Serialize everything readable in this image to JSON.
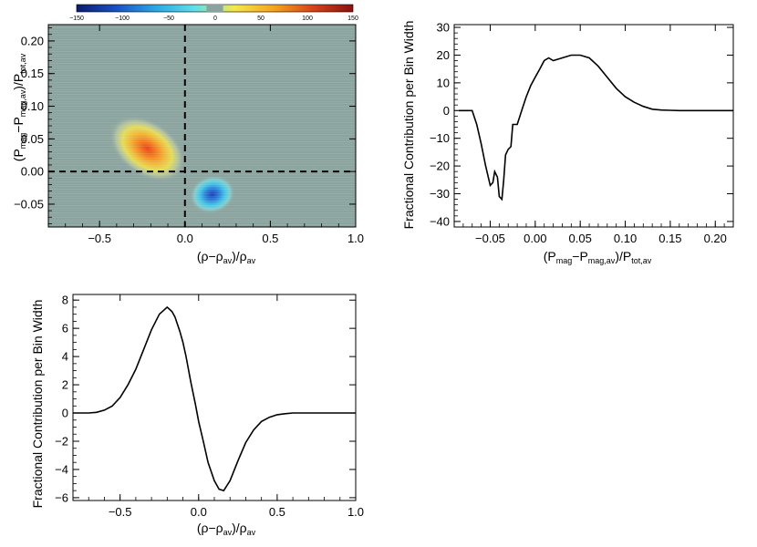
{
  "colorbar": {
    "ticks": [
      "−150",
      "−100",
      "−50",
      "0",
      "50",
      "100",
      "150"
    ],
    "range": [
      -150,
      150
    ],
    "colors": [
      "#0b1d6e",
      "#1a4fc4",
      "#2aa7e6",
      "#5fe0ea",
      "#f4e84a",
      "#f6a41c",
      "#d6421a",
      "#8a1010"
    ]
  },
  "chart_data": [
    {
      "type": "heatmap",
      "title": "",
      "xlabel": {
        "pre": "(ρ−ρ",
        "sub1": "av",
        "mid": ")/ρ",
        "sub2": "av"
      },
      "ylabel": {
        "p1": "(P",
        "s1": "mag",
        "p2": "−P",
        "s2": "mag,av",
        "p3": ")/P",
        "s3": "tot,av"
      },
      "xlim": [
        -0.8,
        1.0
      ],
      "ylim": [
        -0.085,
        0.225
      ],
      "xticks": [
        {
          "v": -0.5,
          "label": "−0.5"
        },
        {
          "v": 0.0,
          "label": "0.0"
        },
        {
          "v": 0.5,
          "label": "0.5"
        },
        {
          "v": 1.0,
          "label": "1.0"
        }
      ],
      "yticks": [
        {
          "v": -0.05,
          "label": "−0.05"
        },
        {
          "v": 0.0,
          "label": "0.00"
        },
        {
          "v": 0.05,
          "label": "0.05"
        },
        {
          "v": 0.1,
          "label": "0.10"
        },
        {
          "v": 0.15,
          "label": "0.15"
        },
        {
          "v": 0.2,
          "label": "0.20"
        }
      ],
      "reference_lines": {
        "x": 0.0,
        "y": 0.0,
        "style": "dashed"
      },
      "background": "#8aa39e",
      "blobs": [
        {
          "name": "positive-lobe",
          "cx": -0.22,
          "cy": 0.035,
          "rx": 0.26,
          "ry": 0.062,
          "angle": -55,
          "peak": 130
        },
        {
          "name": "negative-lobe",
          "cx": 0.16,
          "cy": -0.035,
          "rx": 0.22,
          "ry": 0.028,
          "angle": -15,
          "peak": -120
        }
      ]
    },
    {
      "type": "line",
      "title": "",
      "xlabel": {
        "p1": "(P",
        "s1": "mag",
        "p2": "−P",
        "s2": "mag,av",
        "p3": ")/P",
        "s3": "tot,av"
      },
      "ylabel": "Fractional Contribution per Bin Width",
      "xlim": [
        -0.09,
        0.22
      ],
      "ylim": [
        -42,
        31
      ],
      "xticks": [
        {
          "v": -0.05,
          "label": "−0.05"
        },
        {
          "v": 0.0,
          "label": "0.00"
        },
        {
          "v": 0.05,
          "label": "0.05"
        },
        {
          "v": 0.1,
          "label": "0.10"
        },
        {
          "v": 0.15,
          "label": "0.15"
        },
        {
          "v": 0.2,
          "label": "0.20"
        }
      ],
      "yticks": [
        {
          "v": -40,
          "label": "−40"
        },
        {
          "v": -30,
          "label": "−30"
        },
        {
          "v": -20,
          "label": "−20"
        },
        {
          "v": -10,
          "label": "−10"
        },
        {
          "v": 0,
          "label": "0"
        },
        {
          "v": 10,
          "label": "10"
        },
        {
          "v": 20,
          "label": "20"
        },
        {
          "v": 30,
          "label": "30"
        }
      ],
      "x": [
        -0.085,
        -0.07,
        -0.065,
        -0.06,
        -0.055,
        -0.05,
        -0.047,
        -0.045,
        -0.042,
        -0.04,
        -0.037,
        -0.035,
        -0.033,
        -0.03,
        -0.027,
        -0.025,
        -0.022,
        -0.02,
        -0.015,
        -0.01,
        -0.005,
        0.0,
        0.005,
        0.01,
        0.015,
        0.02,
        0.03,
        0.04,
        0.05,
        0.06,
        0.07,
        0.08,
        0.09,
        0.1,
        0.11,
        0.12,
        0.13,
        0.14,
        0.15,
        0.16,
        0.18,
        0.2,
        0.22
      ],
      "y": [
        0,
        0,
        -5,
        -12,
        -20,
        -27,
        -26,
        -22,
        -24,
        -31,
        -32,
        -25,
        -16,
        -14,
        -13,
        -5,
        -5,
        -5,
        0,
        5,
        9,
        12,
        15,
        18,
        19,
        18,
        19,
        20,
        20,
        19,
        16,
        12,
        8,
        5,
        3,
        1.5,
        0.5,
        0.2,
        0.1,
        0,
        0,
        0,
        0
      ]
    },
    {
      "type": "line",
      "title": "",
      "xlabel": {
        "pre": "(ρ−ρ",
        "sub1": "av",
        "mid": ")/ρ",
        "sub2": "av"
      },
      "ylabel": "Fractional Contribution per Bin Width",
      "xlim": [
        -0.8,
        1.0
      ],
      "ylim": [
        -6.2,
        8.4
      ],
      "xticks": [
        {
          "v": -0.5,
          "label": "−0.5"
        },
        {
          "v": 0.0,
          "label": "0.0"
        },
        {
          "v": 0.5,
          "label": "0.5"
        },
        {
          "v": 1.0,
          "label": "1.0"
        }
      ],
      "yticks": [
        {
          "v": -6,
          "label": "−6"
        },
        {
          "v": -4,
          "label": "−4"
        },
        {
          "v": -2,
          "label": "−2"
        },
        {
          "v": 0,
          "label": "0"
        },
        {
          "v": 2,
          "label": "2"
        },
        {
          "v": 4,
          "label": "4"
        },
        {
          "v": 6,
          "label": "6"
        },
        {
          "v": 8,
          "label": "8"
        }
      ],
      "x": [
        -0.8,
        -0.7,
        -0.65,
        -0.6,
        -0.55,
        -0.5,
        -0.45,
        -0.4,
        -0.35,
        -0.3,
        -0.25,
        -0.2,
        -0.17,
        -0.15,
        -0.12,
        -0.1,
        -0.08,
        -0.05,
        -0.02,
        0.0,
        0.03,
        0.06,
        0.1,
        0.13,
        0.16,
        0.2,
        0.25,
        0.3,
        0.35,
        0.4,
        0.45,
        0.5,
        0.55,
        0.6,
        0.7,
        0.8,
        1.0
      ],
      "y": [
        0,
        0,
        0.05,
        0.2,
        0.5,
        1.1,
        2.0,
        3.1,
        4.5,
        5.9,
        7.0,
        7.5,
        7.2,
        6.8,
        5.8,
        5.0,
        4.0,
        2.2,
        0.6,
        -0.6,
        -2.0,
        -3.5,
        -4.8,
        -5.4,
        -5.5,
        -4.8,
        -3.4,
        -2.1,
        -1.2,
        -0.6,
        -0.3,
        -0.12,
        -0.05,
        0,
        0,
        0,
        0
      ]
    }
  ]
}
